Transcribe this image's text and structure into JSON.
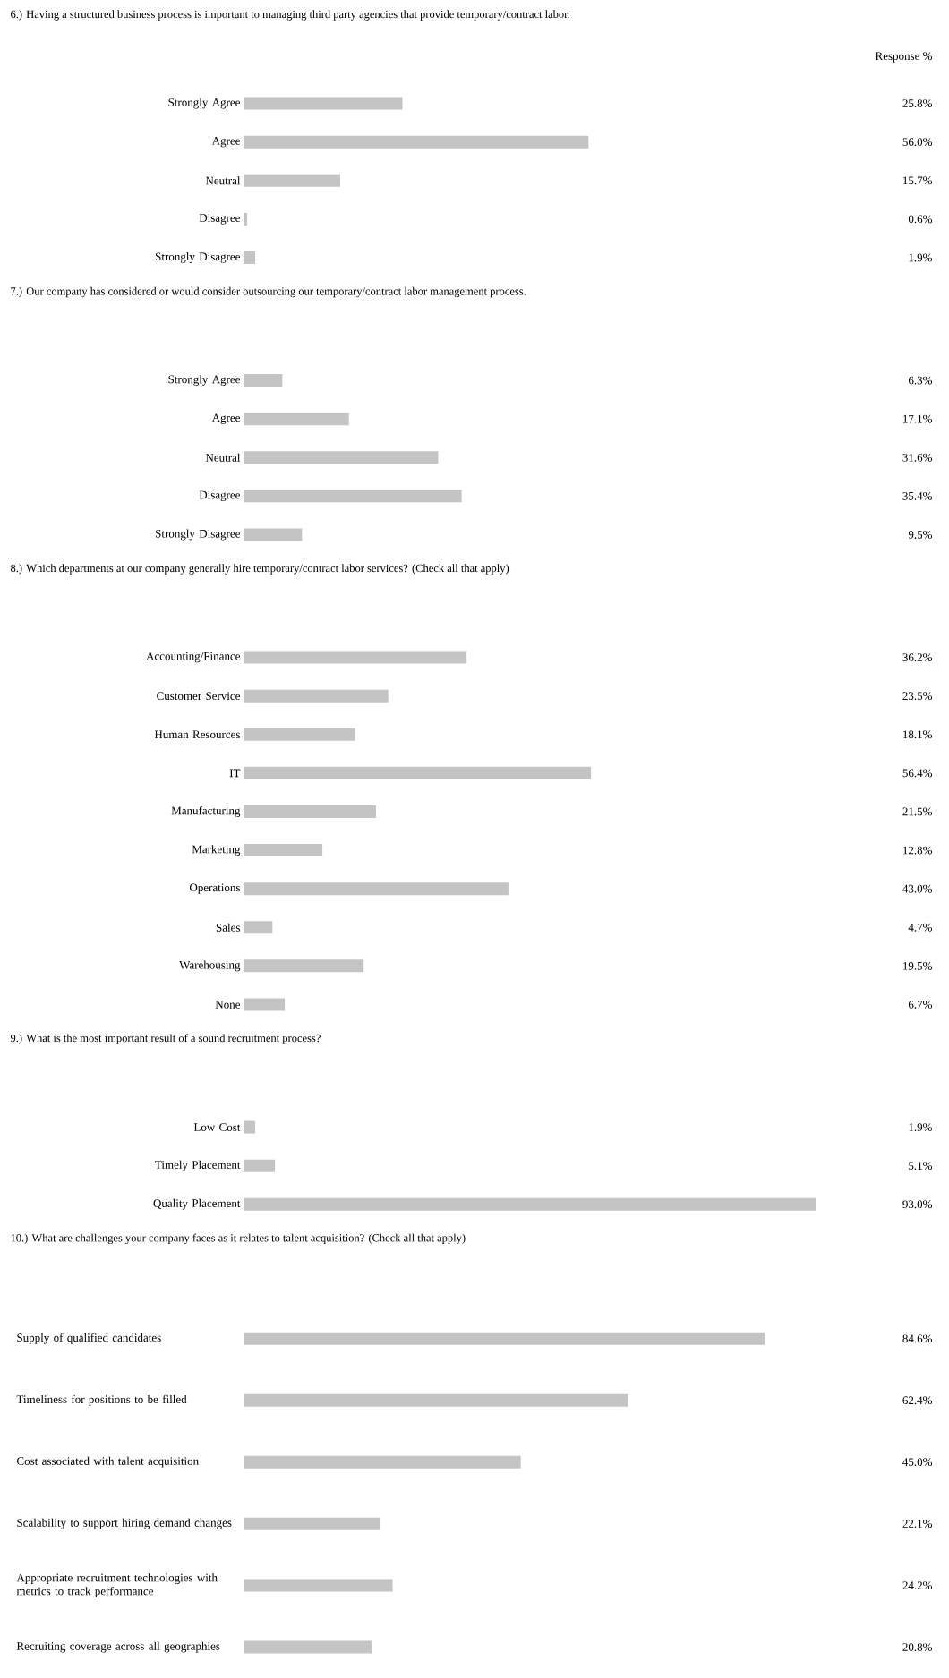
{
  "chart_data": [
    {
      "type": "bar",
      "orientation": "horizontal",
      "title": "6.) Having a structured business process is important to managing third party agencies that provide temporary/contract labor.",
      "annotations": [
        "Response %"
      ],
      "categories": [
        "Strongly Agree",
        "Agree",
        "Neutral",
        "Disagree",
        "Strongly Disagree"
      ],
      "values": [
        25.8,
        56.0,
        15.7,
        0.6,
        1.9
      ],
      "value_labels": [
        "25.8%",
        "56.0%",
        "15.7%",
        "0.6%",
        "1.9%"
      ],
      "color": "#c4c4c4"
    },
    {
      "type": "bar",
      "orientation": "horizontal",
      "title": "7.) Our company has considered or would consider outsourcing our temporary/contract labor management process.",
      "categories": [
        "Strongly Agree",
        "Agree",
        "Neutral",
        "Disagree",
        "Strongly Disagree"
      ],
      "values": [
        6.3,
        17.1,
        31.6,
        35.4,
        9.5
      ],
      "value_labels": [
        "6.3%",
        "17.1%",
        "31.6%",
        "35.4%",
        "9.5%"
      ],
      "color": "#c4c4c4"
    },
    {
      "type": "bar",
      "orientation": "horizontal",
      "title": "8.) Which departments at our company generally hire temporary/contract labor services?  (Check all that apply)",
      "categories": [
        "Accounting/Finance",
        "Customer Service",
        "Human Resources",
        "IT",
        "Manufacturing",
        "Marketing",
        "Operations",
        "Sales",
        "Warehousing",
        "None"
      ],
      "values": [
        36.2,
        23.5,
        18.1,
        56.4,
        21.5,
        12.8,
        43.0,
        4.7,
        19.5,
        6.7
      ],
      "value_labels": [
        "36.2%",
        "23.5%",
        "18.1%",
        "56.4%",
        "21.5%",
        "12.8%",
        "43.0%",
        "4.7%",
        "19.5%",
        "6.7%"
      ],
      "color": "#c4c4c4"
    },
    {
      "type": "bar",
      "orientation": "horizontal",
      "title": "9.) What is the most important result of a sound recruitment process?",
      "categories": [
        "Low Cost",
        "Timely Placement",
        "Quality Placement"
      ],
      "values": [
        1.9,
        5.1,
        93.0
      ],
      "value_labels": [
        "1.9%",
        "5.1%",
        "93.0%"
      ],
      "color": "#c4c4c4"
    },
    {
      "type": "bar",
      "orientation": "horizontal",
      "title": "10.) What are challenges your company faces as it relates to talent acquisition?  (Check all that apply)",
      "categories": [
        "Supply of qualified candidates",
        "Timeliness for positions to be filled",
        "Cost associated with talent acquisition",
        "Scalability to support hiring demand changes",
        "Appropriate recruitment technologies with metrics to track performance",
        "Recruiting coverage across all geographies"
      ],
      "values": [
        84.6,
        62.4,
        45.0,
        22.1,
        24.2,
        20.8
      ],
      "value_labels": [
        "84.6%",
        "62.4%",
        "45.0%",
        "22.1%",
        "24.2%",
        "20.8%"
      ],
      "color": "#c4c4c4"
    }
  ]
}
